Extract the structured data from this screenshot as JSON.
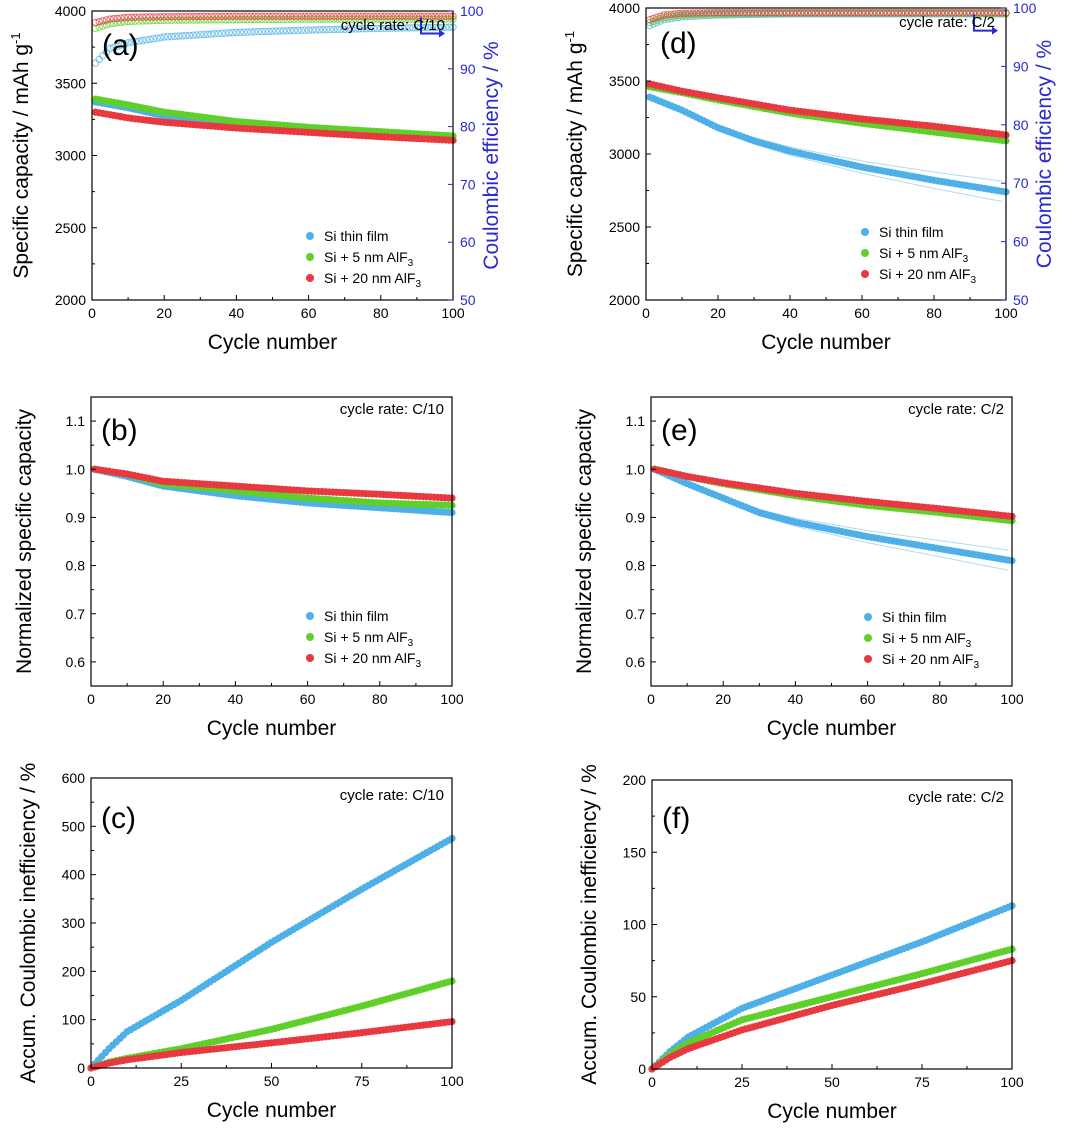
{
  "colors": {
    "si_thin_film": "#4fb0e8",
    "si_5nm": "#5fd02a",
    "si_20nm": "#e83840",
    "ce_axis": "#2a2ad0"
  },
  "chart_data": [
    {
      "id": "a",
      "type": "scatter",
      "panel_label": "(a)",
      "rate": "cycle rate: C/10",
      "xlabel": "Cycle number",
      "ylabel": "Specific capacity / mAh g",
      "ylabel_sup": "-1",
      "y2label": "Coulombic efficiency / %",
      "xlim": [
        0,
        100
      ],
      "ylim": [
        2000,
        4000
      ],
      "y2lim": [
        50,
        100
      ],
      "xticks": [
        "0",
        "20",
        "40",
        "60",
        "80",
        "100"
      ],
      "yticks": [
        "2000",
        "2500",
        "3000",
        "3500",
        "4000"
      ],
      "y2ticks": [
        "50",
        "60",
        "70",
        "80",
        "90",
        "100"
      ],
      "legend": [
        "Si thin film",
        "Si + 5 nm AlF",
        "Si + 20 nm AlF"
      ],
      "legend_sub": "3",
      "series": [
        {
          "name": "Si thin film",
          "kind": "capacity",
          "x": [
            1,
            10,
            20,
            40,
            60,
            80,
            100
          ],
          "y": [
            3370,
            3330,
            3275,
            3210,
            3175,
            3140,
            3105
          ]
        },
        {
          "name": "Si + 5 nm AlF3",
          "kind": "capacity",
          "x": [
            1,
            10,
            20,
            40,
            60,
            80,
            100
          ],
          "y": [
            3390,
            3350,
            3300,
            3235,
            3195,
            3165,
            3135
          ]
        },
        {
          "name": "Si + 20 nm AlF3",
          "kind": "capacity",
          "x": [
            1,
            10,
            20,
            40,
            60,
            80,
            100
          ],
          "y": [
            3300,
            3260,
            3230,
            3190,
            3160,
            3130,
            3105
          ]
        },
        {
          "name": "Si thin film",
          "kind": "efficiency",
          "x": [
            1,
            5,
            10,
            20,
            40,
            60,
            80,
            100
          ],
          "y": [
            91,
            93.5,
            94.5,
            95.5,
            96.3,
            96.7,
            97,
            97.2
          ]
        },
        {
          "name": "Si + 5 nm AlF3",
          "kind": "efficiency",
          "x": [
            1,
            5,
            10,
            20,
            40,
            60,
            80,
            100
          ],
          "y": [
            97,
            97.8,
            98.2,
            98.4,
            98.5,
            98.6,
            98.6,
            98.6
          ]
        },
        {
          "name": "Si + 20 nm AlF3",
          "kind": "efficiency",
          "x": [
            1,
            5,
            10,
            20,
            40,
            60,
            80,
            100
          ],
          "y": [
            98,
            98.6,
            98.9,
            99,
            99.1,
            99.1,
            99.1,
            99.1
          ]
        }
      ]
    },
    {
      "id": "d",
      "type": "scatter",
      "panel_label": "(d)",
      "rate": "cycle rate: C/2",
      "xlabel": "Cycle number",
      "ylabel": "Specific capacity / mAh g",
      "ylabel_sup": "-1",
      "y2label": "Coulombic efficiency / %",
      "xlim": [
        0,
        100
      ],
      "ylim": [
        2000,
        4000
      ],
      "y2lim": [
        50,
        100
      ],
      "xticks": [
        "0",
        "20",
        "40",
        "60",
        "80",
        "100"
      ],
      "yticks": [
        "2000",
        "2500",
        "3000",
        "3500",
        "4000"
      ],
      "y2ticks": [
        "50",
        "60",
        "70",
        "80",
        "90",
        "100"
      ],
      "legend": [
        "Si thin film",
        "Si + 5 nm AlF",
        "Si + 20 nm AlF"
      ],
      "legend_sub": "3",
      "series": [
        {
          "name": "Si thin film",
          "kind": "capacity",
          "x": [
            1,
            10,
            20,
            30,
            40,
            60,
            80,
            100
          ],
          "y": [
            3390,
            3300,
            3180,
            3090,
            3020,
            2910,
            2820,
            2740
          ]
        },
        {
          "name": "Si + 5 nm AlF3",
          "kind": "capacity",
          "x": [
            1,
            10,
            20,
            40,
            60,
            80,
            100
          ],
          "y": [
            3460,
            3420,
            3370,
            3280,
            3210,
            3150,
            3090
          ]
        },
        {
          "name": "Si + 20 nm AlF3",
          "kind": "capacity",
          "x": [
            1,
            10,
            20,
            40,
            60,
            80,
            100
          ],
          "y": [
            3480,
            3430,
            3385,
            3300,
            3240,
            3190,
            3130
          ]
        },
        {
          "name": "Si thin film",
          "kind": "efficiency",
          "x": [
            1,
            5,
            10,
            20,
            40,
            60,
            80,
            100
          ],
          "y": [
            97,
            98,
            98.5,
            98.8,
            99,
            99,
            99,
            99
          ]
        },
        {
          "name": "Si + 5 nm AlF3",
          "kind": "efficiency",
          "x": [
            1,
            5,
            10,
            20,
            40,
            60,
            80,
            100
          ],
          "y": [
            97.5,
            98.4,
            98.8,
            99,
            99.1,
            99.1,
            99.1,
            99.1
          ]
        },
        {
          "name": "Si + 20 nm AlF3",
          "kind": "efficiency",
          "x": [
            1,
            5,
            10,
            20,
            40,
            60,
            80,
            100
          ],
          "y": [
            98,
            98.8,
            99.1,
            99.2,
            99.2,
            99.2,
            99.2,
            99.2
          ]
        }
      ]
    },
    {
      "id": "b",
      "type": "scatter",
      "panel_label": "(b)",
      "rate": "cycle rate: C/10",
      "xlabel": "Cycle number",
      "ylabel": "Normalized specific capacity",
      "xlim": [
        0,
        100
      ],
      "ylim": [
        0.55,
        1.15
      ],
      "xticks": [
        "0",
        "20",
        "40",
        "60",
        "80",
        "100"
      ],
      "yticks": [
        "0.6",
        "0.7",
        "0.8",
        "0.9",
        "1.0",
        "1.1"
      ],
      "legend": [
        "Si thin film",
        "Si + 5 nm AlF",
        "Si + 20 nm AlF"
      ],
      "legend_sub": "3",
      "series": [
        {
          "name": "Si thin film",
          "x": [
            1,
            10,
            20,
            40,
            60,
            80,
            100
          ],
          "y": [
            1.0,
            0.985,
            0.965,
            0.945,
            0.93,
            0.92,
            0.91
          ]
        },
        {
          "name": "Si + 5 nm AlF3",
          "x": [
            1,
            10,
            20,
            40,
            60,
            80,
            100
          ],
          "y": [
            1.0,
            0.99,
            0.97,
            0.955,
            0.94,
            0.93,
            0.925
          ]
        },
        {
          "name": "Si + 20 nm AlF3",
          "x": [
            1,
            10,
            20,
            40,
            60,
            80,
            100
          ],
          "y": [
            1.0,
            0.99,
            0.975,
            0.965,
            0.955,
            0.948,
            0.94
          ]
        }
      ]
    },
    {
      "id": "e",
      "type": "scatter",
      "panel_label": "(e)",
      "rate": "cycle rate: C/2",
      "xlabel": "Cycle number",
      "ylabel": "Normalized specific capacity",
      "xlim": [
        0,
        100
      ],
      "ylim": [
        0.55,
        1.15
      ],
      "xticks": [
        "0",
        "20",
        "40",
        "60",
        "80",
        "100"
      ],
      "yticks": [
        "0.6",
        "0.7",
        "0.8",
        "0.9",
        "1.0",
        "1.1"
      ],
      "legend": [
        "Si thin film",
        "Si + 5 nm AlF",
        "Si + 20 nm AlF"
      ],
      "legend_sub": "3",
      "series": [
        {
          "name": "Si thin film",
          "x": [
            1,
            10,
            20,
            30,
            40,
            60,
            80,
            100
          ],
          "y": [
            1.0,
            0.97,
            0.94,
            0.91,
            0.89,
            0.86,
            0.835,
            0.81
          ]
        },
        {
          "name": "Si + 5 nm AlF3",
          "x": [
            1,
            10,
            20,
            40,
            60,
            80,
            100
          ],
          "y": [
            1.0,
            0.985,
            0.97,
            0.945,
            0.925,
            0.91,
            0.893
          ]
        },
        {
          "name": "Si + 20 nm AlF3",
          "x": [
            1,
            10,
            20,
            40,
            60,
            80,
            100
          ],
          "y": [
            1.0,
            0.985,
            0.972,
            0.95,
            0.933,
            0.918,
            0.902
          ]
        }
      ]
    },
    {
      "id": "c",
      "type": "scatter",
      "panel_label": "(c)",
      "rate": "cycle rate: C/10",
      "xlabel": "Cycle number",
      "ylabel": "Accum. Coulombic inefficiency / %",
      "xlim": [
        0,
        100
      ],
      "ylim": [
        0,
        600
      ],
      "xticks": [
        "0",
        "25",
        "50",
        "75",
        "100"
      ],
      "yticks": [
        "0",
        "100",
        "200",
        "300",
        "400",
        "500",
        "600"
      ],
      "series": [
        {
          "name": "Si thin film",
          "x": [
            0,
            5,
            10,
            25,
            50,
            75,
            100
          ],
          "y": [
            0,
            40,
            75,
            140,
            260,
            370,
            475
          ]
        },
        {
          "name": "Si + 5 nm AlF3",
          "x": [
            0,
            5,
            10,
            25,
            50,
            75,
            100
          ],
          "y": [
            0,
            12,
            20,
            40,
            80,
            128,
            180
          ]
        },
        {
          "name": "Si + 20 nm AlF3",
          "x": [
            0,
            5,
            10,
            25,
            50,
            75,
            100
          ],
          "y": [
            0,
            10,
            17,
            32,
            52,
            73,
            96
          ]
        }
      ]
    },
    {
      "id": "f",
      "type": "scatter",
      "panel_label": "(f)",
      "rate": "cycle rate: C/2",
      "xlabel": "Cycle number",
      "ylabel": "Accum. Coulombic inefficiency / %",
      "xlim": [
        0,
        100
      ],
      "ylim": [
        0,
        200
      ],
      "xticks": [
        "0",
        "25",
        "50",
        "75",
        "100"
      ],
      "yticks": [
        "0",
        "50",
        "100",
        "150",
        "200"
      ],
      "series": [
        {
          "name": "Si thin film",
          "x": [
            0,
            5,
            10,
            25,
            50,
            75,
            100
          ],
          "y": [
            0,
            12,
            22,
            42,
            65,
            88,
            113
          ]
        },
        {
          "name": "Si + 5 nm AlF3",
          "x": [
            0,
            5,
            10,
            25,
            50,
            75,
            100
          ],
          "y": [
            0,
            10,
            18,
            34,
            50,
            66,
            83
          ]
        },
        {
          "name": "Si + 20 nm AlF3",
          "x": [
            0,
            5,
            10,
            25,
            50,
            75,
            100
          ],
          "y": [
            0,
            8,
            14,
            27,
            44,
            59,
            75
          ]
        }
      ]
    }
  ]
}
